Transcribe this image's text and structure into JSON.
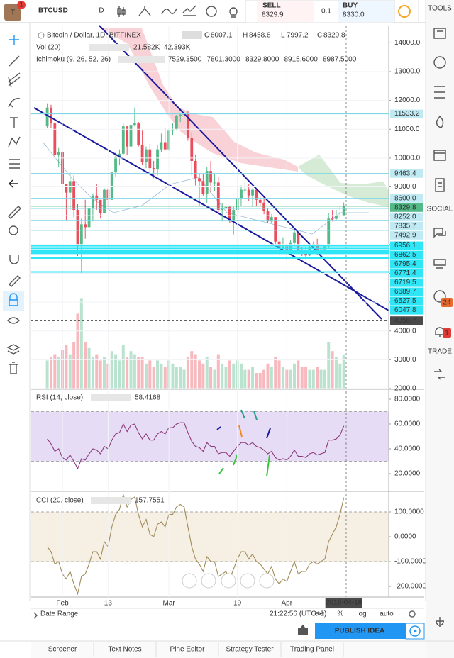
{
  "header": {
    "logo": "T",
    "badge": "1",
    "symbol": "BTCUSD",
    "interval": "D",
    "sell_label": "SELL",
    "sell_price": "8329.9",
    "spread": "0.1",
    "buy_label": "BUY",
    "buy_price": "8330.0",
    "tools": "TOOLS"
  },
  "sidebar": {
    "social": "SOCIAL",
    "trade": "TRADE",
    "badges": [
      "24",
      "1"
    ]
  },
  "chart_data": [
    {
      "type": "candlestick",
      "title": "Bitcoin / Dollar, 1D, BITFINEX",
      "ohlc_labels": [
        "O",
        "H",
        "L",
        "C"
      ],
      "x": [
        "2018-01-28",
        "2018-01-29",
        "2018-01-30",
        "2018-01-31",
        "2018-02-01",
        "2018-02-02",
        "2018-02-03",
        "2018-02-04",
        "2018-02-05",
        "2018-02-06",
        "2018-02-07",
        "2018-02-08",
        "2018-02-09",
        "2018-02-10",
        "2018-02-11",
        "2018-02-12",
        "2018-02-13",
        "2018-02-14",
        "2018-02-15",
        "2018-02-16",
        "2018-02-17",
        "2018-02-18",
        "2018-02-19",
        "2018-02-20",
        "2018-02-21",
        "2018-02-22",
        "2018-02-23",
        "2018-02-24",
        "2018-02-25",
        "2018-02-26",
        "2018-02-27",
        "2018-02-28",
        "2018-03-01",
        "2018-03-02",
        "2018-03-03",
        "2018-03-04",
        "2018-03-05",
        "2018-03-06",
        "2018-03-07",
        "2018-03-08",
        "2018-03-09",
        "2018-03-10",
        "2018-03-11",
        "2018-03-12",
        "2018-03-13",
        "2018-03-14",
        "2018-03-15",
        "2018-03-16",
        "2018-03-17",
        "2018-03-18",
        "2018-03-19",
        "2018-03-20",
        "2018-03-21",
        "2018-03-22",
        "2018-03-23",
        "2018-03-24",
        "2018-03-25",
        "2018-03-26",
        "2018-03-27",
        "2018-03-28",
        "2018-03-29",
        "2018-03-30",
        "2018-03-31",
        "2018-04-01",
        "2018-04-02",
        "2018-04-03",
        "2018-04-04",
        "2018-04-05",
        "2018-04-06",
        "2018-04-07",
        "2018-04-08",
        "2018-04-09",
        "2018-04-10",
        "2018-04-11",
        "2018-04-12",
        "2018-04-13",
        "2018-04-14",
        "2018-04-15",
        "2018-04-16"
      ],
      "open": [
        11100,
        11750,
        11200,
        10100,
        10200,
        9100,
        8800,
        9200,
        8200,
        6950,
        7700,
        7600,
        8250,
        8700,
        8550,
        8100,
        8900,
        8550,
        9500,
        10050,
        10150,
        11100,
        10400,
        11150,
        11200,
        10450,
        9850,
        10300,
        9650,
        9600,
        10300,
        10550,
        10300,
        10950,
        11000,
        11450,
        11500,
        11550,
        10700,
        9900,
        9300,
        9200,
        8750,
        9550,
        9150,
        9150,
        8200,
        8250,
        8300,
        7850,
        8200,
        8600,
        8900,
        8900,
        8700,
        8900,
        8550,
        8450,
        8150,
        7800,
        7950,
        7100,
        6850,
        6930,
        6820,
        7050,
        7420,
        6800,
        6780,
        6620,
        6900,
        7020,
        6770,
        6830,
        6930,
        7900,
        7890,
        8000,
        8007.1
      ],
      "high": [
        11900,
        11850,
        11250,
        10350,
        10250,
        9100,
        9500,
        9400,
        8400,
        7900,
        8550,
        8300,
        8750,
        9100,
        8550,
        8950,
        8950,
        9500,
        10200,
        10300,
        11200,
        11100,
        11250,
        11750,
        11250,
        10950,
        10400,
        10500,
        9900,
        10450,
        10850,
        11050,
        11050,
        11200,
        11500,
        11550,
        11700,
        11650,
        10900,
        10100,
        9450,
        9450,
        9700,
        9900,
        9450,
        9350,
        8450,
        8600,
        8350,
        8300,
        9000,
        9050,
        9150,
        9100,
        8950,
        8950,
        8700,
        8650,
        8250,
        8050,
        7950,
        7300,
        7250,
        7050,
        7150,
        7500,
        7450,
        6900,
        6900,
        7050,
        7100,
        7200,
        6900,
        6950,
        8100,
        8200,
        8200,
        8350,
        8458.8
      ],
      "low": [
        11050,
        11050,
        10000,
        9700,
        8750,
        7850,
        8200,
        7950,
        6600,
        6000,
        7200,
        7600,
        7800,
        8200,
        7900,
        8100,
        8350,
        8550,
        9350,
        9750,
        10100,
        10100,
        10350,
        11100,
        10400,
        9750,
        9650,
        9400,
        9300,
        9400,
        10200,
        10300,
        10250,
        10800,
        10950,
        11250,
        11350,
        10600,
        9400,
        9050,
        8350,
        8700,
        8450,
        8800,
        8850,
        8050,
        7800,
        7950,
        7750,
        7350,
        8100,
        8350,
        8750,
        8500,
        8300,
        8350,
        8350,
        8050,
        7750,
        7750,
        7000,
        6550,
        6800,
        6450,
        6800,
        7000,
        6750,
        6600,
        6550,
        6600,
        6900,
        6650,
        6700,
        6800,
        6850,
        7800,
        7850,
        7900,
        7997.2
      ],
      "close": [
        11750,
        11200,
        10100,
        10200,
        9100,
        8800,
        9200,
        8200,
        6950,
        7700,
        7600,
        8250,
        8700,
        8550,
        8100,
        8900,
        8550,
        9500,
        10050,
        10150,
        11100,
        10400,
        11150,
        11200,
        10450,
        9850,
        10300,
        9650,
        9600,
        10300,
        10550,
        10300,
        10950,
        11000,
        11450,
        11500,
        11550,
        10700,
        9900,
        9300,
        9200,
        8750,
        9550,
        9150,
        9150,
        8200,
        8250,
        8300,
        7850,
        8200,
        8600,
        8900,
        8900,
        8700,
        8900,
        8550,
        8450,
        8150,
        7800,
        7950,
        7100,
        6850,
        6930,
        6820,
        7050,
        7420,
        6800,
        6780,
        6620,
        6900,
        7020,
        6770,
        6830,
        6930,
        7900,
        7890,
        8000,
        8007.1,
        8329.8
      ],
      "colors": {
        "up": "#53b987",
        "down": "#eb4d5c"
      },
      "ylim": [
        2000,
        14500
      ],
      "yticks": [
        {
          "value": 14000,
          "label": "14000.0"
        },
        {
          "value": 13000,
          "label": "13000.0"
        },
        {
          "value": 12000,
          "label": "12000.0"
        },
        {
          "value": 11000,
          "label": "11000.0"
        },
        {
          "value": 10000,
          "label": "10000.0"
        },
        {
          "value": 9000,
          "label": "9000.0"
        },
        {
          "value": 8000,
          "label": "8000.0"
        },
        {
          "value": 7000,
          "label": "7000.0"
        },
        {
          "value": 6000,
          "label": "6000.0"
        },
        {
          "value": 5000,
          "label": "5000.0"
        },
        {
          "value": 4000,
          "label": "4000.0"
        },
        {
          "value": 3000,
          "label": "3000.0"
        },
        {
          "value": 2000,
          "label": "2000.0"
        }
      ],
      "xticks": [
        {
          "value": "2018-02-01",
          "label": "Feb"
        },
        {
          "value": "2018-02-13",
          "label": "13"
        },
        {
          "value": "2018-03-01",
          "label": "Mar"
        },
        {
          "value": "2018-03-19",
          "label": "19"
        },
        {
          "value": "2018-04-01",
          "label": "Apr"
        }
      ],
      "volume": {
        "name": "Vol (20)",
        "value_label": "21.582K",
        "ma_label": "42.393K",
        "values": [
          18,
          20,
          22,
          20,
          25,
          28,
          22,
          30,
          48,
          58,
          30,
          26,
          20,
          22,
          18,
          20,
          16,
          24,
          22,
          18,
          28,
          20,
          24,
          22,
          20,
          20,
          16,
          18,
          14,
          18,
          16,
          14,
          18,
          16,
          14,
          14,
          12,
          20,
          24,
          22,
          18,
          16,
          20,
          14,
          12,
          22,
          16,
          14,
          18,
          16,
          18,
          16,
          12,
          12,
          14,
          10,
          10,
          12,
          16,
          14,
          20,
          18,
          14,
          12,
          12,
          16,
          18,
          14,
          14,
          12,
          12,
          14,
          12,
          12,
          30,
          24,
          20,
          16,
          21.582
        ]
      },
      "ichimoku": {
        "name": "Ichimoku (9, 26, 52, 26)",
        "values": [
          "7529.3500",
          "7801.3000",
          "8329.8000",
          "8915.6000",
          "8987.5000"
        ],
        "colors": [
          "#2196f3",
          "#993333",
          "#4caf50",
          "#e53935",
          "#7b1fa2"
        ]
      },
      "price_tags": [
        {
          "value": 11533.2,
          "color": "#bfeaf3"
        },
        {
          "value": 9463.4,
          "color": "#bfeaf3"
        },
        {
          "value": 8600,
          "label": "8600.0",
          "color": "#bfeaf3"
        },
        {
          "value": 8329.8,
          "color": "#53b987"
        },
        {
          "value": 8252,
          "label": "8252.0",
          "color": "#bfeaf3"
        },
        {
          "value": 7835.7,
          "color": "#bfeaf3"
        },
        {
          "value": 7492.9,
          "color": "#bfeaf3"
        },
        {
          "value": 6956.1,
          "color": "#2ee6f6"
        },
        {
          "value": 6862.5,
          "color": "#2ee6f6"
        },
        {
          "value": 6795.4,
          "color": "#2ee6f6"
        },
        {
          "value": 6771.4,
          "color": "#2ee6f6"
        },
        {
          "value": 6719.5,
          "color": "#2ee6f6"
        },
        {
          "value": 6689.7,
          "color": "#2ee6f6"
        },
        {
          "value": 6527.5,
          "color": "#2ee6f6"
        },
        {
          "value": 6047.8,
          "color": "#2ee6f6"
        },
        {
          "value": 4356.7,
          "color": "#4a4a4a"
        }
      ]
    },
    {
      "type": "line",
      "title": "RSI (14, close)",
      "color": "#8b3a7b",
      "band": [
        30,
        70
      ],
      "band_color": "#e7dcf6",
      "values": [
        48,
        44,
        38,
        40,
        33,
        31,
        35,
        30,
        24,
        32,
        31,
        36,
        40,
        39,
        36,
        42,
        40,
        47,
        52,
        53,
        60,
        54,
        59,
        60,
        53,
        48,
        52,
        47,
        47,
        52,
        54,
        52,
        57,
        57,
        60,
        61,
        61,
        53,
        46,
        42,
        41,
        38,
        45,
        42,
        42,
        36,
        37,
        37,
        34,
        38,
        42,
        45,
        45,
        43,
        45,
        42,
        41,
        39,
        36,
        38,
        33,
        31,
        32,
        31,
        34,
        39,
        34,
        34,
        33,
        36,
        37,
        35,
        36,
        37,
        47,
        47,
        48,
        51,
        58.4168
      ],
      "ylim": [
        6.3,
        87.4
      ],
      "yticks": [
        {
          "value": 80,
          "label": "80.0000"
        },
        {
          "value": 60,
          "label": "60.0000"
        },
        {
          "value": 40,
          "label": "40.0000"
        },
        {
          "value": 20,
          "label": "20.0000"
        }
      ]
    },
    {
      "type": "line",
      "title": "CCI (20, close)",
      "color": "#a08c5a",
      "band": [
        -100,
        100
      ],
      "band_color": "#f6efe4",
      "values": [
        -40,
        -60,
        -110,
        -100,
        -150,
        -170,
        -140,
        -190,
        -230,
        -160,
        -150,
        -110,
        -60,
        -60,
        -90,
        -20,
        -40,
        40,
        90,
        110,
        170,
        120,
        150,
        160,
        90,
        40,
        70,
        10,
        0,
        50,
        60,
        40,
        90,
        90,
        120,
        130,
        120,
        40,
        -40,
        -90,
        -110,
        -140,
        -80,
        -100,
        -100,
        -160,
        -150,
        -140,
        -170,
        -130,
        -90,
        -60,
        -60,
        -90,
        -70,
        -100,
        -110,
        -130,
        -150,
        -120,
        -170,
        -190,
        -170,
        -180,
        -140,
        -100,
        -150,
        -140,
        -140,
        -110,
        -100,
        -110,
        -100,
        -90,
        -20,
        10,
        40,
        90,
        157.7551
      ],
      "ylim": [
        -237,
        180
      ],
      "yticks": [
        {
          "value": 100,
          "label": "100.0000"
        },
        {
          "value": 0,
          "label": "0.0000"
        },
        {
          "value": -100,
          "label": "-100.0000"
        },
        {
          "value": -200,
          "label": "-200.0000"
        }
      ]
    }
  ],
  "footer": {
    "date_range": "Date Range",
    "time": "21:22:56 (UTC+9)",
    "toggles": [
      "ext",
      "%",
      "log",
      "auto"
    ],
    "publish": "PUBLISH IDEA",
    "tabs": [
      "Screener",
      "Text Notes",
      "Pine Editor",
      "Strategy Tester",
      "Trading Panel"
    ]
  }
}
